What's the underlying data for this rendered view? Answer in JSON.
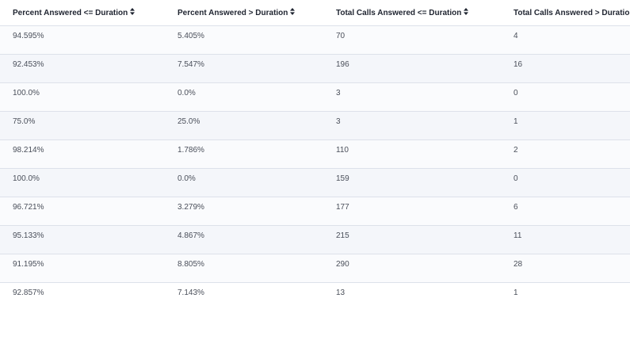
{
  "table": {
    "columns": [
      {
        "label": "Percent Answered <= Duration"
      },
      {
        "label": "Percent Answered > Duration"
      },
      {
        "label": "Total Calls Answered <= Duration"
      },
      {
        "label": "Total Calls Answered > Duration"
      }
    ],
    "rows": [
      [
        "94.595%",
        "5.405%",
        "70",
        "4"
      ],
      [
        "92.453%",
        "7.547%",
        "196",
        "16"
      ],
      [
        "100.0%",
        "0.0%",
        "3",
        "0"
      ],
      [
        "75.0%",
        "25.0%",
        "3",
        "1"
      ],
      [
        "98.214%",
        "1.786%",
        "110",
        "2"
      ],
      [
        "100.0%",
        "0.0%",
        "159",
        "0"
      ],
      [
        "96.721%",
        "3.279%",
        "177",
        "6"
      ],
      [
        "95.133%",
        "4.867%",
        "215",
        "11"
      ],
      [
        "91.195%",
        "8.805%",
        "290",
        "28"
      ],
      [
        "92.857%",
        "7.143%",
        "13",
        "1"
      ]
    ],
    "sort_icon": "sort-updown-icon"
  }
}
